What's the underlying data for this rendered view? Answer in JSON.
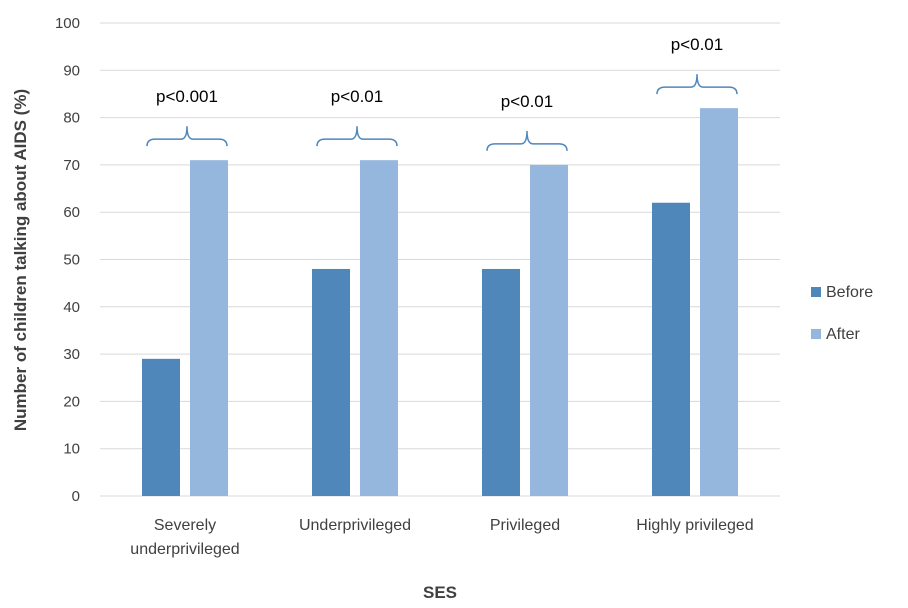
{
  "chart_data": {
    "type": "bar",
    "categories": [
      [
        "Severely",
        "underprivileged"
      ],
      [
        "Underprivileged"
      ],
      [
        "Privileged"
      ],
      [
        "Highly privileged"
      ]
    ],
    "series": [
      {
        "name": "Before",
        "values": [
          29,
          48,
          48,
          62
        ],
        "color": "#4f87bb"
      },
      {
        "name": "After",
        "values": [
          71,
          71,
          70,
          82
        ],
        "color": "#95b7de"
      }
    ],
    "significance": [
      "p<0.001",
      "p<0.01",
      "p<0.01",
      "p<0.01"
    ],
    "title": "",
    "xlabel": "SES",
    "ylabel": "Number of children talking about AIDS (%)",
    "ylim": [
      0,
      100
    ],
    "ytick_step": 10,
    "grid": true,
    "legend_position": "right",
    "colors": {
      "gridline": "#d9d9d9",
      "bracket": "#4f87bb",
      "text": "#404040"
    }
  }
}
